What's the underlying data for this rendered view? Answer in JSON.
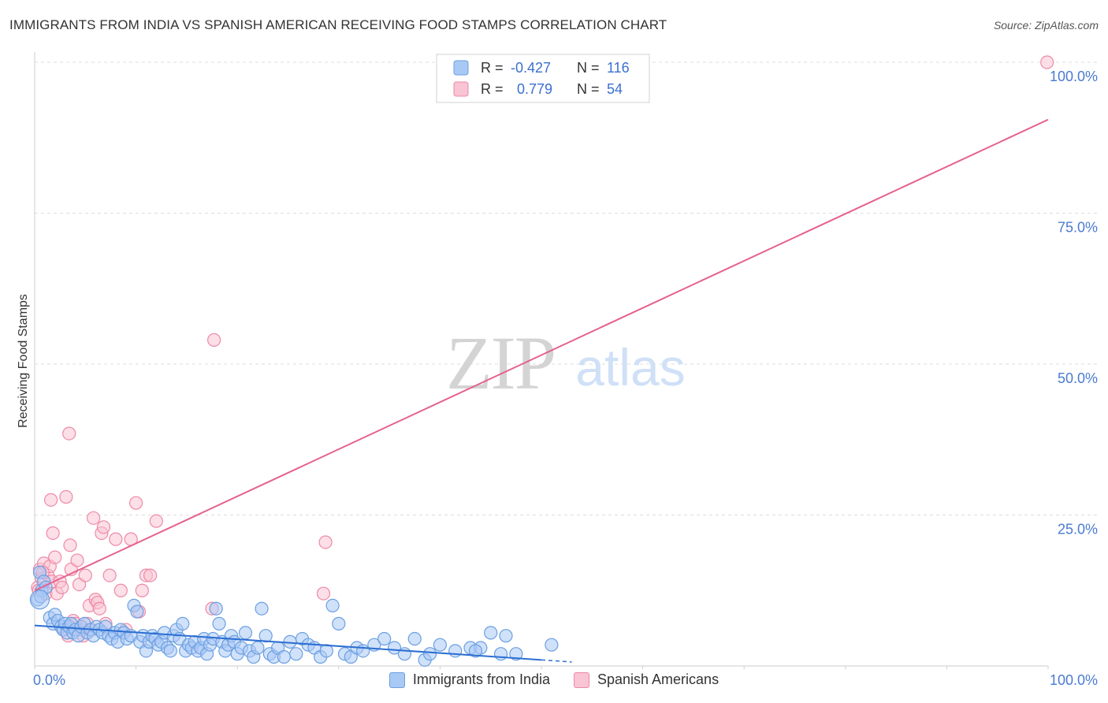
{
  "title": "IMMIGRANTS FROM INDIA VS SPANISH AMERICAN RECEIVING FOOD STAMPS CORRELATION CHART",
  "source": "Source: ZipAtlas.com",
  "watermark": {
    "zip": "ZIP",
    "atlas": "atlas"
  },
  "colors": {
    "blue_fill": "#a9c9f5",
    "blue_stroke": "#6b9fe0",
    "blue_line": "#2d6fd2",
    "pink_fill": "#f9c4d4",
    "pink_stroke": "#ee89a8",
    "pink_line": "#e5608d",
    "axis_text": "#4a7bd0",
    "grid": "#dddddd"
  },
  "legend_top": {
    "rows": [
      {
        "r_label": "R =",
        "r_value": "-0.427",
        "n_label": "N =",
        "n_value": "116"
      },
      {
        "r_label": "R =",
        "r_value": "0.779",
        "n_label": "N =",
        "n_value": "54"
      }
    ]
  },
  "legend_bottom": {
    "series_a": "Immigrants from India",
    "series_b": "Spanish Americans"
  },
  "chart_data": {
    "type": "scatter",
    "ylabel": "Receiving Food Stamps",
    "x_tick_labels": [
      "0.0%",
      "100.0%"
    ],
    "y_tick_labels": [
      "25.0%",
      "50.0%",
      "75.0%",
      "100.0%"
    ],
    "xlim": [
      0,
      100
    ],
    "ylim": [
      0,
      100
    ],
    "grid": true,
    "series": [
      {
        "name": "Immigrants from India",
        "r": -0.427,
        "n": 116,
        "trend": {
          "x0": 0,
          "y0": 6.7,
          "x1": 50,
          "y1": 1.0,
          "dashed_to_x": 53
        },
        "points": [
          [
            0.3,
            11
          ],
          [
            0.5,
            15.5
          ],
          [
            0.7,
            12.5
          ],
          [
            0.9,
            14
          ],
          [
            1.1,
            13
          ],
          [
            0.6,
            11.5
          ],
          [
            1.5,
            8
          ],
          [
            1.8,
            7
          ],
          [
            2,
            8.5
          ],
          [
            2.3,
            7.5
          ],
          [
            2.6,
            6.5
          ],
          [
            2.8,
            6
          ],
          [
            3,
            7
          ],
          [
            3.2,
            5.5
          ],
          [
            3.4,
            6.5
          ],
          [
            3.6,
            7
          ],
          [
            3.8,
            5.5
          ],
          [
            4,
            6
          ],
          [
            4.3,
            5
          ],
          [
            4.6,
            6.5
          ],
          [
            4.9,
            7
          ],
          [
            5.2,
            5.5
          ],
          [
            5.5,
            6
          ],
          [
            5.8,
            5
          ],
          [
            6.1,
            6.5
          ],
          [
            6.4,
            6
          ],
          [
            6.7,
            5.5
          ],
          [
            7,
            6.5
          ],
          [
            7.3,
            5
          ],
          [
            7.6,
            4.5
          ],
          [
            7.9,
            5.5
          ],
          [
            8.2,
            4
          ],
          [
            8.5,
            6
          ],
          [
            8.8,
            5.5
          ],
          [
            9.1,
            4.5
          ],
          [
            9.5,
            5
          ],
          [
            9.8,
            10
          ],
          [
            10.1,
            9
          ],
          [
            10.4,
            4
          ],
          [
            10.7,
            5
          ],
          [
            11,
            2.5
          ],
          [
            11.3,
            4
          ],
          [
            11.6,
            5
          ],
          [
            11.9,
            4.5
          ],
          [
            12.2,
            3.5
          ],
          [
            12.5,
            4
          ],
          [
            12.8,
            5.5
          ],
          [
            13.1,
            3
          ],
          [
            13.4,
            2.5
          ],
          [
            13.7,
            5
          ],
          [
            14,
            6
          ],
          [
            14.3,
            4.5
          ],
          [
            14.6,
            7
          ],
          [
            14.9,
            2.5
          ],
          [
            15.2,
            3.5
          ],
          [
            15.5,
            3
          ],
          [
            15.8,
            4
          ],
          [
            16.1,
            2.5
          ],
          [
            16.4,
            3
          ],
          [
            16.7,
            4.5
          ],
          [
            17,
            2
          ],
          [
            17.3,
            3.5
          ],
          [
            17.6,
            4.5
          ],
          [
            17.9,
            9.5
          ],
          [
            18.2,
            7
          ],
          [
            18.5,
            4
          ],
          [
            18.8,
            2.5
          ],
          [
            19.1,
            3.5
          ],
          [
            19.4,
            5
          ],
          [
            19.7,
            4
          ],
          [
            20,
            2
          ],
          [
            20.4,
            3
          ],
          [
            20.8,
            5.5
          ],
          [
            21.2,
            2.5
          ],
          [
            21.6,
            1.5
          ],
          [
            22,
            3
          ],
          [
            22.4,
            9.5
          ],
          [
            22.8,
            5
          ],
          [
            23.2,
            2
          ],
          [
            23.6,
            1.5
          ],
          [
            24,
            3
          ],
          [
            24.6,
            1.5
          ],
          [
            25.2,
            4
          ],
          [
            25.8,
            2
          ],
          [
            26.4,
            4.5
          ],
          [
            27,
            3.5
          ],
          [
            27.6,
            3
          ],
          [
            28.2,
            1.5
          ],
          [
            28.8,
            2.5
          ],
          [
            29.4,
            10
          ],
          [
            30,
            7
          ],
          [
            30.6,
            2
          ],
          [
            31.2,
            1.5
          ],
          [
            31.8,
            3
          ],
          [
            32.4,
            2.5
          ],
          [
            33.5,
            3.5
          ],
          [
            34.5,
            4.5
          ],
          [
            35.5,
            3
          ],
          [
            36.5,
            2
          ],
          [
            37.5,
            4.5
          ],
          [
            38.5,
            1
          ],
          [
            39,
            2
          ],
          [
            40,
            3.5
          ],
          [
            41.5,
            2.5
          ],
          [
            43,
            3
          ],
          [
            44,
            3
          ],
          [
            45,
            5.5
          ],
          [
            46,
            2
          ],
          [
            46.5,
            5
          ],
          [
            47.5,
            2
          ],
          [
            51,
            3.5
          ],
          [
            43.5,
            2.5
          ]
        ],
        "large_points": [
          [
            0.5,
            11
          ]
        ]
      },
      {
        "name": "Spanish Americans",
        "r": 0.779,
        "n": 54,
        "trend": {
          "x0": 0,
          "y0": 12.5,
          "x1": 100,
          "y1": 90.5
        },
        "points": [
          [
            0.3,
            13
          ],
          [
            0.5,
            16
          ],
          [
            0.7,
            14.5
          ],
          [
            0.9,
            17
          ],
          [
            1.1,
            12
          ],
          [
            1.3,
            15
          ],
          [
            1.5,
            16.5
          ],
          [
            1.7,
            14
          ],
          [
            0.4,
            12.5
          ],
          [
            0.8,
            15.5
          ],
          [
            1.6,
            27.5
          ],
          [
            1.8,
            22
          ],
          [
            2,
            18
          ],
          [
            2.2,
            12
          ],
          [
            2.5,
            14
          ],
          [
            2.7,
            13
          ],
          [
            2.9,
            6
          ],
          [
            3.1,
            28
          ],
          [
            3.3,
            5
          ],
          [
            3.5,
            20
          ],
          [
            3.6,
            16
          ],
          [
            3.8,
            7.5
          ],
          [
            4,
            7
          ],
          [
            4.2,
            17.5
          ],
          [
            4.4,
            13.5
          ],
          [
            4.6,
            6
          ],
          [
            4.8,
            5
          ],
          [
            5,
            15
          ],
          [
            5.2,
            7
          ],
          [
            5.4,
            10
          ],
          [
            5.6,
            6
          ],
          [
            5.8,
            24.5
          ],
          [
            6,
            11
          ],
          [
            6.2,
            10.5
          ],
          [
            6.4,
            9.5
          ],
          [
            6.6,
            22
          ],
          [
            6.8,
            23
          ],
          [
            7,
            7
          ],
          [
            7.4,
            15
          ],
          [
            8,
            21
          ],
          [
            8.5,
            12.5
          ],
          [
            9,
            6
          ],
          [
            9.5,
            21
          ],
          [
            10,
            27
          ],
          [
            10.3,
            9
          ],
          [
            10.6,
            12.5
          ],
          [
            11,
            15
          ],
          [
            11.4,
            15
          ],
          [
            12,
            24
          ],
          [
            17.5,
            9.5
          ],
          [
            3.4,
            38.5
          ],
          [
            17.7,
            54
          ],
          [
            28.5,
            12
          ],
          [
            28.7,
            20.5
          ],
          [
            99.9,
            100
          ]
        ]
      }
    ]
  }
}
